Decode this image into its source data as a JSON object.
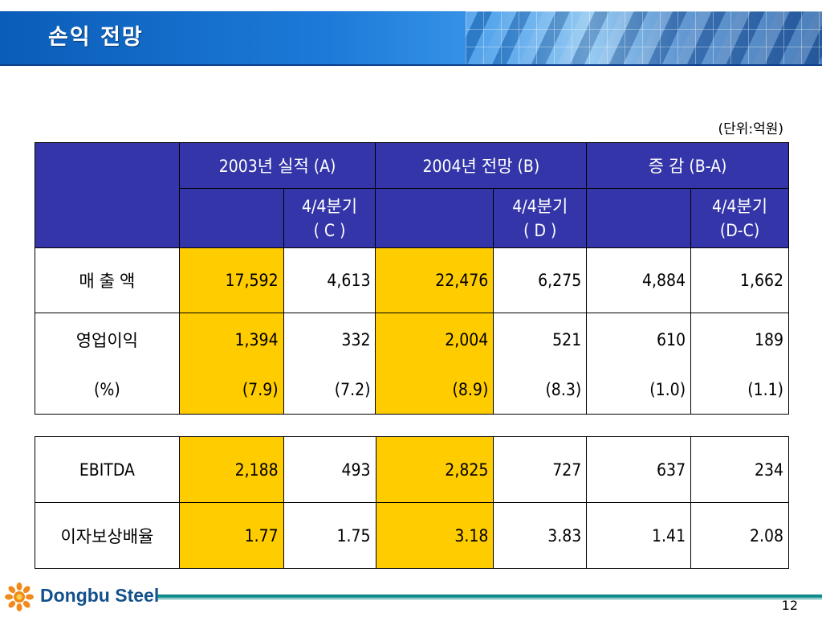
{
  "slide_title": "손익 전망",
  "unit_label": "(단위:억원)",
  "header": {
    "col_2003": "2003년 실적 (A)",
    "col_2004": "2004년 전망 (B)",
    "col_change": "증  감 (B-A)",
    "sub_c_line1": "4/4분기",
    "sub_c_line2": "( C )",
    "sub_d_line1": "4/4분기",
    "sub_d_line2": "( D )",
    "sub_dc_line1": "4/4분기",
    "sub_dc_line2": "(D-C)"
  },
  "rows": {
    "sales": {
      "label": "매 출 액",
      "a": "17,592",
      "c": "4,613",
      "b": "22,476",
      "d": "6,275",
      "ba": "4,884",
      "dc": "1,662"
    },
    "op": {
      "label": "영업이익",
      "a": "1,394",
      "c": "332",
      "b": "2,004",
      "d": "521",
      "ba": "610",
      "dc": "189"
    },
    "op_pct": {
      "label": "(%)",
      "a": "(7.9)",
      "c": "(7.2)",
      "b": "(8.9)",
      "d": "(8.3)",
      "ba": "(1.0)",
      "dc": "(1.1)"
    },
    "ebitda": {
      "label": "EBITDA",
      "a": "2,188",
      "c": "493",
      "b": "2,825",
      "d": "727",
      "ba": "637",
      "dc": "234"
    },
    "icr": {
      "label": "이자보상배율",
      "a": "1.77",
      "c": "1.75",
      "b": "3.18",
      "d": "3.83",
      "ba": "1.41",
      "dc": "2.08"
    }
  },
  "footer": {
    "logo_text": "Dongbu Steel",
    "page_number": "12"
  },
  "colors": {
    "header_fill": "#3435a8",
    "highlight": "#ffcc00",
    "title_bar": "#1d7ad8",
    "footer_line": "#0c8a8a"
  }
}
